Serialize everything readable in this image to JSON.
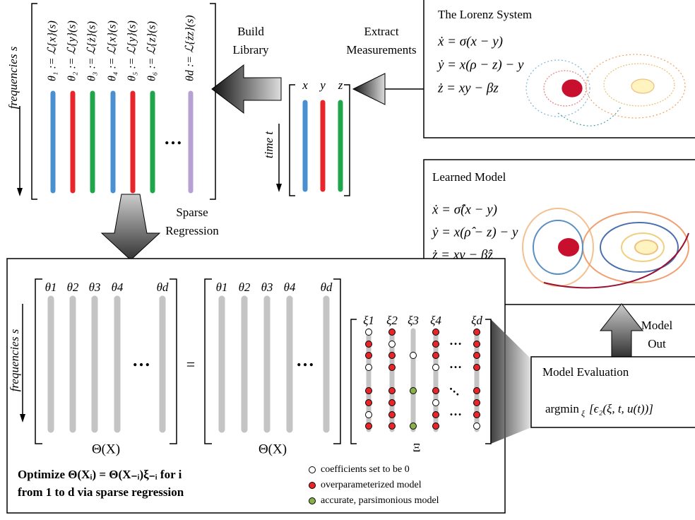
{
  "arrows": {
    "build_library": [
      "Build",
      "Library"
    ],
    "extract_measurements": [
      "Extract",
      "Measurements"
    ],
    "sparse_regression": [
      "Sparse",
      "Regression"
    ],
    "model_out": [
      "Model",
      "Out"
    ]
  },
  "library": {
    "axis_label": "frequencies s",
    "columns": [
      "θ₁ := ℒ{x}(s)",
      "θ₂ := ℒ{y}(s)",
      "θ₃ := ℒ{ż}(s)",
      "θ₄ := ℒ{x}(s)",
      "θ₅ := ℒ{y}(s)",
      "θ₆ := ℒ{z}(s)",
      "θd := ℒ{żz}(s)"
    ],
    "ellipsis": "…"
  },
  "measurements": {
    "axis_label": "time t",
    "columns": [
      "x",
      "y",
      "z"
    ]
  },
  "lorenz": {
    "title": "The Lorenz System",
    "equations": [
      "ẋ = σ(x − y)",
      "ẏ = x(ρ − z) − y",
      "ż = xy − βz"
    ]
  },
  "learned": {
    "title": "Learned Model",
    "equations": [
      "ẋ = σ̂(x − y)",
      "ẏ = x(ρ̂ − z) − y",
      "ż = xy − β̂z"
    ]
  },
  "regression": {
    "axis_label": "frequencies s",
    "left_columns": [
      "θ1",
      "θ2",
      "θ3",
      "θ4",
      "θd"
    ],
    "left_label": "Θ(X)",
    "equals": "=",
    "right_columns": [
      "θ1",
      "θ2",
      "θ3",
      "θ4",
      "θd"
    ],
    "right_label": "Θ(X)",
    "xi_columns": [
      "ξ1",
      "ξ2",
      "ξ3",
      "ξ4",
      "ξd"
    ],
    "xi_label": "Ξ",
    "ellipsis": "…",
    "optimize": [
      "Optimize  Θ(Xᵢ) = Θ(X₋ᵢ)ξ₋ᵢ  for i",
      "from 1 to d via sparse regression"
    ],
    "legend": [
      "coefficients set to be 0",
      "overparameterized model",
      "accurate, parsimonious model"
    ]
  },
  "evaluation": {
    "title": "Model Evaluation",
    "argmin": "argmin",
    "sub": "ξ",
    "expr": "[ϵ₂(ξ, t, u(t))]"
  }
}
